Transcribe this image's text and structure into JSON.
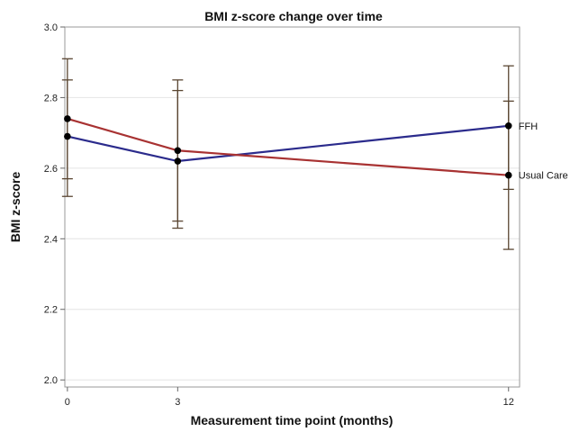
{
  "chart_data": {
    "type": "line",
    "title": "BMI z-score change over time",
    "xlabel": "Measurement time point (months)",
    "ylabel": "BMI z-score",
    "x": [
      0,
      3,
      12
    ],
    "x_tick_labels": [
      "0",
      "3",
      "12"
    ],
    "xlim": [
      -0.07,
      12.3
    ],
    "ylim": [
      1.98,
      3.0
    ],
    "y_ticks": [
      2.0,
      2.2,
      2.4,
      2.6,
      2.8,
      3.0
    ],
    "y_tick_labels": [
      "2.0",
      "2.2",
      "2.4",
      "2.6",
      "2.8",
      "3.0"
    ],
    "grid": "horizontal",
    "legend": "end-of-line labels",
    "series": [
      {
        "name": "FFH",
        "color": "#2b2b8c",
        "values": [
          2.69,
          2.62,
          2.72
        ],
        "lower": [
          2.52,
          2.43,
          2.54
        ],
        "upper": [
          2.85,
          2.82,
          2.89
        ]
      },
      {
        "name": "Usual Care",
        "color": "#a83232",
        "values": [
          2.74,
          2.65,
          2.58
        ],
        "lower": [
          2.57,
          2.45,
          2.37
        ],
        "upper": [
          2.91,
          2.85,
          2.79
        ]
      }
    ],
    "error_bar_color": "#5a4632"
  }
}
